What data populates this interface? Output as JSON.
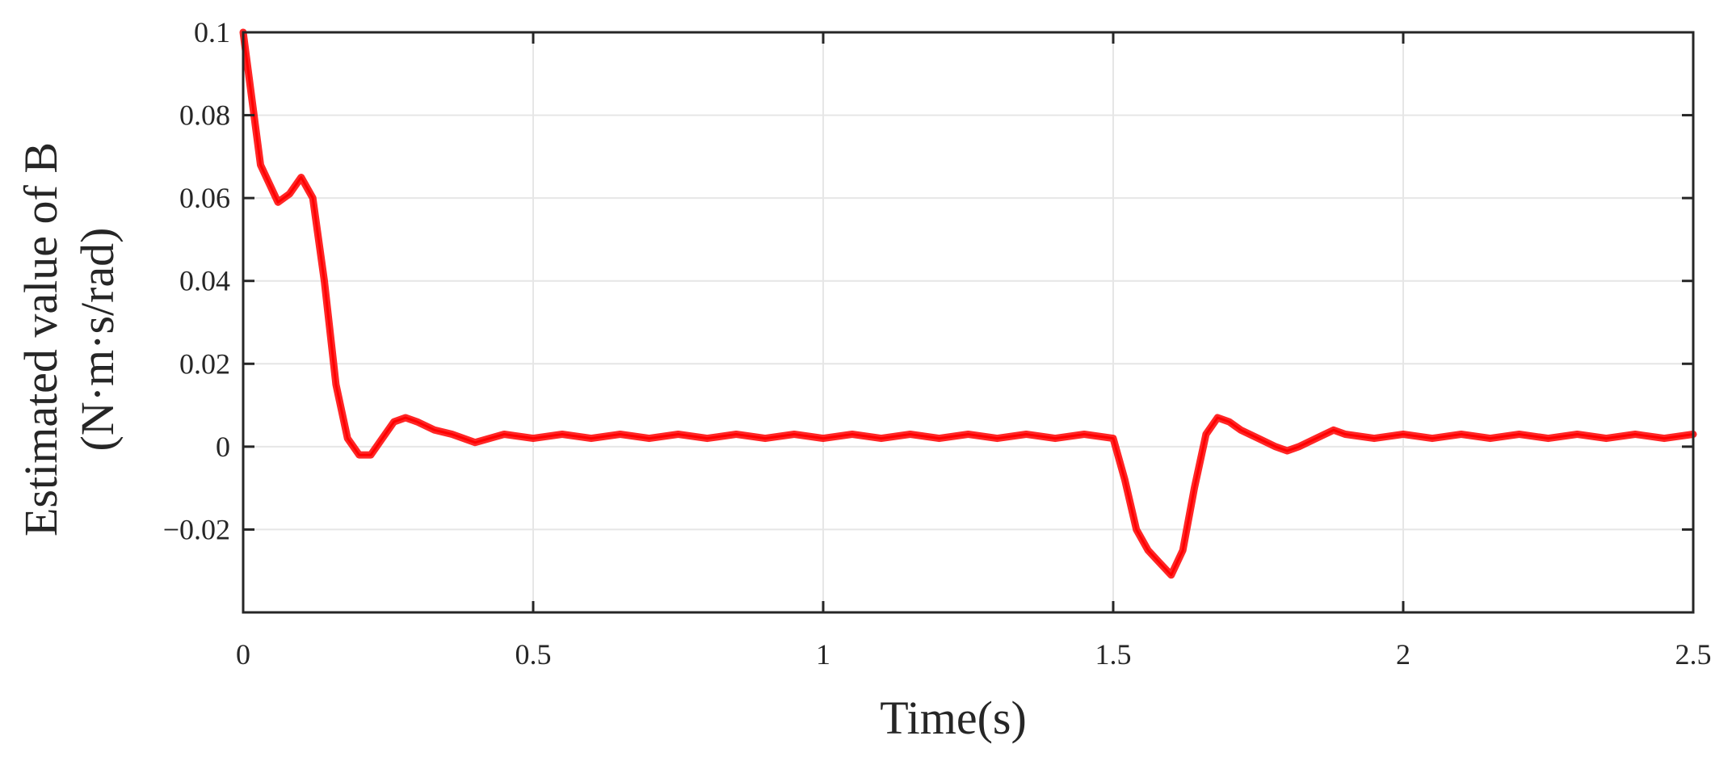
{
  "chart_data": {
    "type": "line",
    "xlabel": "Time(s)",
    "ylabel_lines": [
      "Estimated value of B",
      "(N·m·s/rad)"
    ],
    "xlim": [
      0,
      2.5
    ],
    "ylim": [
      -0.04,
      0.1
    ],
    "x_ticks": [
      0,
      0.5,
      1,
      1.5,
      2,
      2.5
    ],
    "x_tick_labels": [
      "0",
      "0.5",
      "1",
      "1.5",
      "2",
      "2.5"
    ],
    "y_ticks": [
      -0.02,
      0,
      0.02,
      0.04,
      0.06,
      0.08,
      0.1
    ],
    "y_tick_labels": [
      "−0.02",
      "0",
      "0.02",
      "0.04",
      "0.06",
      "0.08",
      "0.1"
    ],
    "grid": true,
    "series": [
      {
        "color": "#ff0000",
        "x": [
          0,
          0.03,
          0.06,
          0.08,
          0.1,
          0.12,
          0.14,
          0.16,
          0.18,
          0.2,
          0.22,
          0.24,
          0.26,
          0.28,
          0.3,
          0.33,
          0.36,
          0.4,
          0.45,
          0.5,
          0.55,
          0.6,
          0.65,
          0.7,
          0.75,
          0.8,
          0.85,
          0.9,
          0.95,
          1.0,
          1.05,
          1.1,
          1.15,
          1.2,
          1.25,
          1.3,
          1.35,
          1.4,
          1.45,
          1.5,
          1.52,
          1.54,
          1.56,
          1.58,
          1.6,
          1.62,
          1.64,
          1.66,
          1.68,
          1.7,
          1.72,
          1.75,
          1.78,
          1.8,
          1.82,
          1.85,
          1.88,
          1.9,
          1.95,
          2.0,
          2.05,
          2.1,
          2.15,
          2.2,
          2.25,
          2.3,
          2.35,
          2.4,
          2.45,
          2.5
        ],
        "y": [
          0.1,
          0.068,
          0.059,
          0.061,
          0.065,
          0.06,
          0.04,
          0.015,
          0.002,
          -0.002,
          -0.002,
          0.002,
          0.006,
          0.007,
          0.006,
          0.004,
          0.003,
          0.001,
          0.003,
          0.002,
          0.003,
          0.002,
          0.003,
          0.002,
          0.003,
          0.002,
          0.003,
          0.002,
          0.003,
          0.002,
          0.003,
          0.002,
          0.003,
          0.002,
          0.003,
          0.002,
          0.003,
          0.002,
          0.003,
          0.002,
          -0.008,
          -0.02,
          -0.025,
          -0.028,
          -0.031,
          -0.025,
          -0.01,
          0.003,
          0.007,
          0.006,
          0.004,
          0.002,
          0.0,
          -0.001,
          0.0,
          0.002,
          0.004,
          0.003,
          0.002,
          0.003,
          0.002,
          0.003,
          0.002,
          0.003,
          0.002,
          0.003,
          0.002,
          0.003,
          0.002,
          0.003
        ]
      }
    ]
  }
}
